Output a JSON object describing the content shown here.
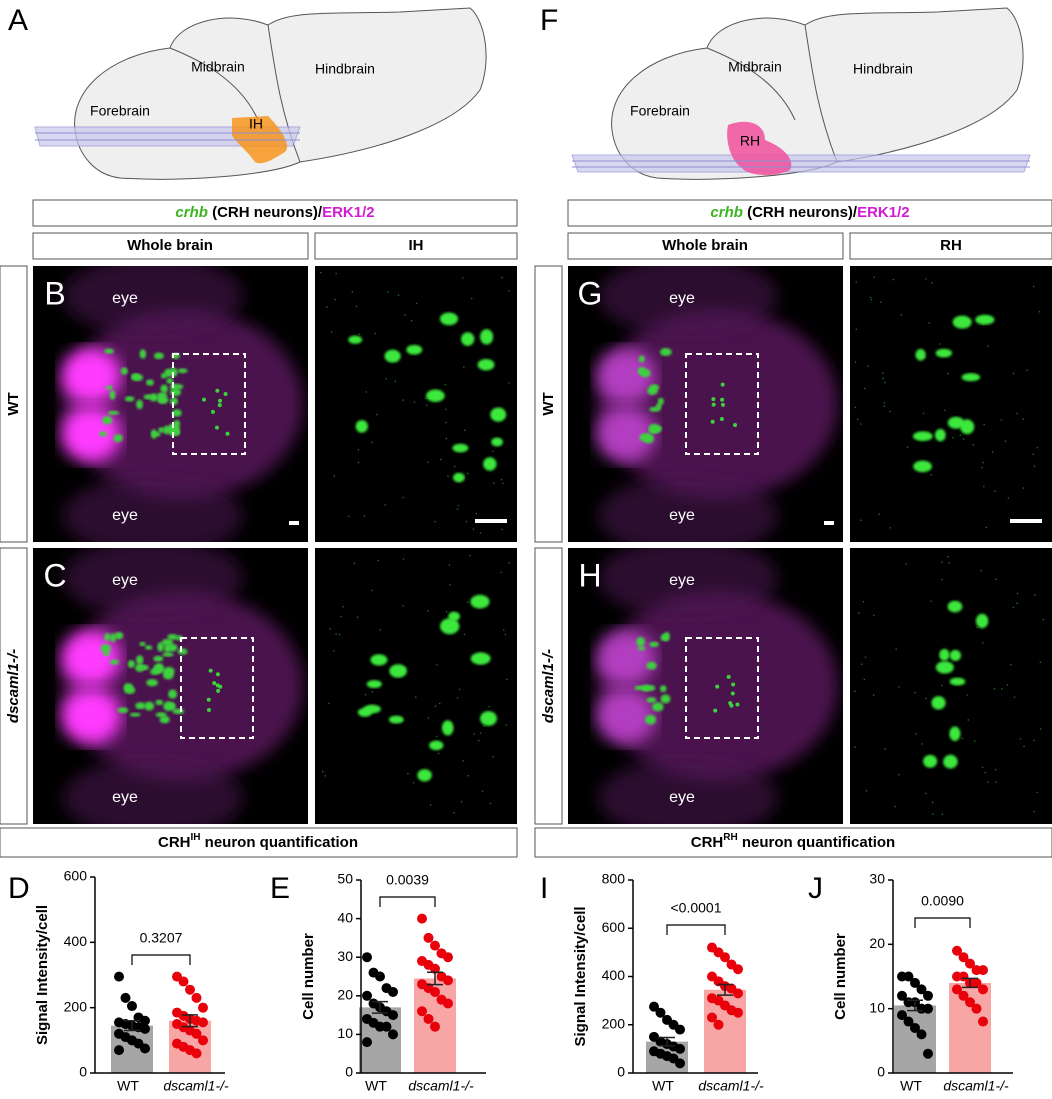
{
  "schematics": [
    {
      "letter": "A",
      "regions": [
        "Forebrain",
        "Midbrain",
        "Hindbrain"
      ],
      "target": "IH"
    },
    {
      "letter": "F",
      "regions": [
        "Forebrain",
        "Midbrain",
        "Hindbrain"
      ],
      "target": "RH"
    }
  ],
  "image_groups": [
    {
      "header": {
        "gene": "crhb",
        "middle": " (CRH neurons)/",
        "protein": "ERK1/2"
      },
      "columns": [
        "Whole brain",
        "IH"
      ],
      "rows": [
        {
          "label": "WT",
          "letter": "B",
          "eyes": [
            "eye",
            "eye"
          ]
        },
        {
          "label": "dscaml1-/-",
          "letter": "C",
          "eyes": [
            "eye",
            "eye"
          ]
        }
      ],
      "quant_title": {
        "prefix": "CRH",
        "sup": "IH",
        "suffix": " neuron quantification"
      }
    },
    {
      "header": {
        "gene": "crhb",
        "middle": " (CRH neurons)/",
        "protein": "ERK1/2"
      },
      "columns": [
        "Whole brain",
        "RH"
      ],
      "rows": [
        {
          "label": "WT",
          "letter": "G",
          "eyes": [
            "eye",
            "eye"
          ]
        },
        {
          "label": "dscaml1-/-",
          "letter": "H",
          "eyes": [
            "eye",
            "eye"
          ]
        }
      ],
      "quant_title": {
        "prefix": "CRH",
        "sup": "RH",
        "suffix": " neuron quantification"
      }
    }
  ],
  "chart_data": [
    {
      "type": "bar",
      "panel": "D",
      "y_label": "Signal Intensity/cell",
      "categories": [
        "WT",
        "dscaml1-/-"
      ],
      "values": [
        145,
        160
      ],
      "errors": [
        15,
        18
      ],
      "colors": [
        "#a6a6a6",
        "#f7a5a5"
      ],
      "point_colors": [
        "#000000",
        "#e8000b"
      ],
      "points": [
        [
          295,
          230,
          205,
          170,
          160,
          155,
          150,
          145,
          140,
          135,
          120,
          110,
          100,
          90,
          75,
          70
        ],
        [
          295,
          280,
          255,
          230,
          200,
          185,
          175,
          165,
          160,
          155,
          150,
          140,
          130,
          120,
          100,
          90,
          80,
          70,
          60
        ]
      ],
      "ylim": [
        0,
        600
      ],
      "yticks": [
        0,
        200,
        400,
        600
      ],
      "annotation": "0.3207"
    },
    {
      "type": "bar",
      "panel": "E",
      "y_label": "Cell number",
      "categories": [
        "WT",
        "dscaml1-/-"
      ],
      "values": [
        17,
        24.5
      ],
      "errors": [
        1.5,
        1.6
      ],
      "colors": [
        "#a6a6a6",
        "#f7a5a5"
      ],
      "point_colors": [
        "#000000",
        "#e8000b"
      ],
      "points": [
        [
          30,
          26,
          25,
          22,
          21,
          20,
          18,
          17,
          16,
          15,
          14,
          13,
          12,
          12,
          10,
          8
        ],
        [
          40,
          35,
          33,
          31,
          30,
          29,
          28,
          27,
          25,
          24,
          23,
          22,
          21,
          19,
          18,
          16,
          14,
          12
        ]
      ],
      "ylim": [
        0,
        50
      ],
      "yticks": [
        0,
        10,
        20,
        30,
        40,
        50
      ],
      "annotation": "0.0039"
    },
    {
      "type": "bar",
      "panel": "I",
      "y_label": "Signal Intensity/cell",
      "categories": [
        "WT",
        "dscaml1-/-"
      ],
      "values": [
        130,
        345
      ],
      "errors": [
        17,
        22
      ],
      "colors": [
        "#a6a6a6",
        "#f7a5a5"
      ],
      "point_colors": [
        "#000000",
        "#e8000b"
      ],
      "points": [
        [
          275,
          250,
          220,
          200,
          180,
          150,
          130,
          120,
          110,
          100,
          90,
          80,
          70,
          60,
          40
        ],
        [
          520,
          500,
          480,
          450,
          430,
          400,
          380,
          360,
          350,
          330,
          310,
          300,
          280,
          260,
          250,
          230,
          200
        ]
      ],
      "ylim": [
        0,
        800
      ],
      "yticks": [
        0,
        200,
        400,
        600,
        800
      ],
      "annotation": "<0.0001"
    },
    {
      "type": "bar",
      "panel": "J",
      "y_label": "Cell number",
      "categories": [
        "WT",
        "dscaml1-/-"
      ],
      "values": [
        10.5,
        14
      ],
      "errors": [
        0.8,
        0.7
      ],
      "colors": [
        "#a6a6a6",
        "#f7a5a5"
      ],
      "point_colors": [
        "#000000",
        "#e8000b"
      ],
      "points": [
        [
          15,
          15,
          14,
          13,
          12,
          12,
          11,
          11,
          10,
          10,
          9,
          8,
          7,
          6,
          3
        ],
        [
          19,
          18,
          17,
          16,
          16,
          15,
          15,
          14,
          14,
          13,
          13,
          12,
          11,
          10,
          8
        ]
      ],
      "ylim": [
        0,
        30
      ],
      "yticks": [
        0,
        10,
        20,
        30
      ],
      "annotation": "0.0090"
    }
  ]
}
